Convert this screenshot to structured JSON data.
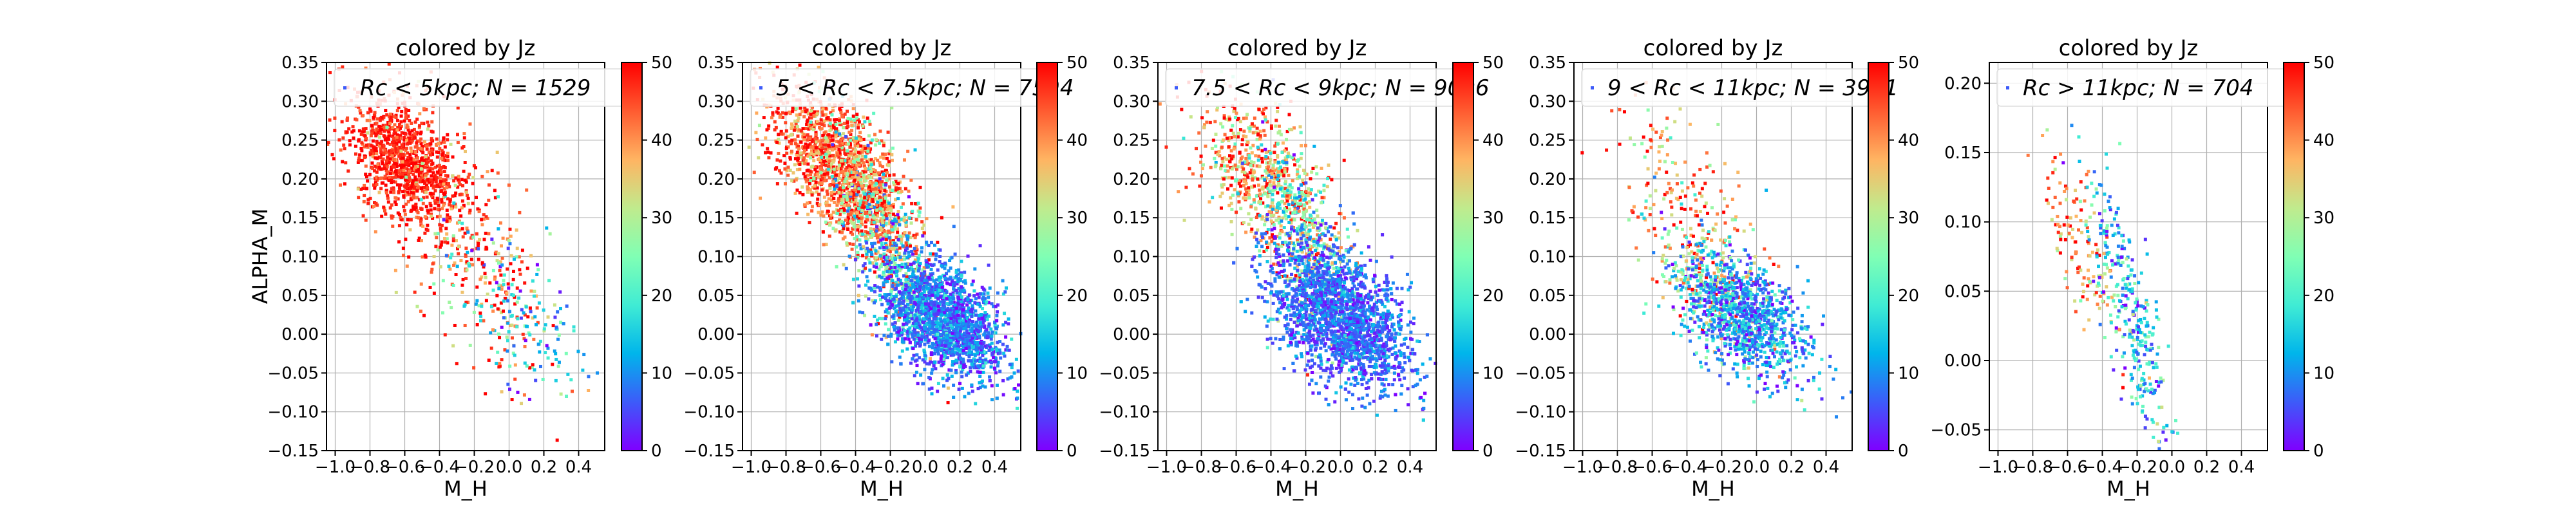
{
  "figure": {
    "ylabel": "ALPHA_M",
    "colorbar_ticks": [
      "0",
      "10",
      "20",
      "30",
      "40",
      "50"
    ],
    "colorscale": [
      "#7f00ff",
      "#3d5bf9",
      "#00b5eb",
      "#40ecd4",
      "#80ffb4",
      "#c0eb8d",
      "#ffb462",
      "#ff5b30",
      "#ff0000"
    ]
  },
  "chart_data": [
    {
      "type": "scatter",
      "title": "colored by Jz",
      "xlabel": "M_H",
      "ylabel": "ALPHA_M",
      "legend": "Rc < 5kpc;  N = 1529",
      "legend_placement": "top-right",
      "xlim": [
        -1.05,
        0.55
      ],
      "ylim": [
        -0.15,
        0.35
      ],
      "xticks": [
        -1.0,
        -0.8,
        -0.6,
        -0.4,
        -0.2,
        0.0,
        0.2,
        0.4
      ],
      "xtick_labels": [
        "−1.0",
        "−0.8",
        "−0.6",
        "−0.4",
        "−0.2",
        "0.0",
        "0.2",
        "0.4"
      ],
      "yticks": [
        -0.15,
        -0.1,
        -0.05,
        0.0,
        0.05,
        0.1,
        0.15,
        0.2,
        0.25,
        0.3,
        0.35
      ],
      "ytick_labels": [
        "−0.15",
        "−0.10",
        "−0.05",
        "0.00",
        "0.05",
        "0.10",
        "0.15",
        "0.20",
        "0.25",
        "0.30",
        "0.35"
      ],
      "grid": true,
      "color_variable": "Jz",
      "color_range": [
        0,
        50
      ],
      "n": 1529,
      "clusters": [
        {
          "n": 900,
          "cx": -0.62,
          "cy": 0.225,
          "sx": 0.16,
          "sy": 0.035,
          "slope": -0.12,
          "cmean": 48,
          "csd": 3
        },
        {
          "n": 380,
          "cx": -0.4,
          "cy": 0.17,
          "sx": 0.25,
          "sy": 0.07,
          "slope": -0.25,
          "cmean": 45,
          "csd": 8
        },
        {
          "n": 180,
          "cx": -0.05,
          "cy": 0.05,
          "sx": 0.18,
          "sy": 0.05,
          "slope": -0.2,
          "cmean": 30,
          "csd": 18
        },
        {
          "n": 69,
          "cx": 0.15,
          "cy": 0.0,
          "sx": 0.18,
          "sy": 0.04,
          "slope": -0.1,
          "cmean": 12,
          "csd": 6
        }
      ]
    },
    {
      "type": "scatter",
      "title": "colored by Jz",
      "xlabel": "M_H",
      "legend": "5 < Rc < 7.5kpc;  N = 7594",
      "legend_placement": "top-right",
      "xlim": [
        -1.05,
        0.55
      ],
      "ylim": [
        -0.15,
        0.35
      ],
      "xticks": [
        -1.0,
        -0.8,
        -0.6,
        -0.4,
        -0.2,
        0.0,
        0.2,
        0.4
      ],
      "xtick_labels": [
        "−1.0",
        "−0.8",
        "−0.6",
        "−0.4",
        "−0.2",
        "0.0",
        "0.2",
        "0.4"
      ],
      "yticks": [
        -0.15,
        -0.1,
        -0.05,
        0.0,
        0.05,
        0.1,
        0.15,
        0.2,
        0.25,
        0.3,
        0.35
      ],
      "ytick_labels": [
        "−0.15",
        "−0.10",
        "−0.05",
        "0.00",
        "0.05",
        "0.10",
        "0.15",
        "0.20",
        "0.25",
        "0.30",
        "0.35"
      ],
      "grid": true,
      "color_variable": "Jz",
      "color_range": [
        0,
        50
      ],
      "n": 7594,
      "clusters": [
        {
          "n": 1300,
          "cx": -0.5,
          "cy": 0.215,
          "sx": 0.2,
          "sy": 0.04,
          "slope": -0.15,
          "cmean": 44,
          "csd": 7
        },
        {
          "n": 700,
          "cx": -0.25,
          "cy": 0.13,
          "sx": 0.16,
          "sy": 0.05,
          "slope": -0.3,
          "cmean": 28,
          "csd": 14
        },
        {
          "n": 2000,
          "cx": 0.1,
          "cy": 0.02,
          "sx": 0.18,
          "sy": 0.035,
          "slope": -0.1,
          "cmean": 8,
          "csd": 5
        }
      ]
    },
    {
      "type": "scatter",
      "title": "colored by Jz",
      "xlabel": "M_H",
      "legend": "7.5 < Rc < 9kpc;  N = 9006",
      "legend_placement": "top-right",
      "xlim": [
        -1.05,
        0.55
      ],
      "ylim": [
        -0.15,
        0.35
      ],
      "xticks": [
        -1.0,
        -0.8,
        -0.6,
        -0.4,
        -0.2,
        0.0,
        0.2,
        0.4
      ],
      "xtick_labels": [
        "−1.0",
        "−0.8",
        "−0.6",
        "−0.4",
        "−0.2",
        "0.0",
        "0.2",
        "0.4"
      ],
      "yticks": [
        -0.15,
        -0.1,
        -0.05,
        0.0,
        0.05,
        0.1,
        0.15,
        0.2,
        0.25,
        0.3,
        0.35
      ],
      "ytick_labels": [
        "−0.15",
        "−0.10",
        "−0.05",
        "0.00",
        "0.05",
        "0.10",
        "0.15",
        "0.20",
        "0.25",
        "0.30",
        "0.35"
      ],
      "grid": true,
      "color_variable": "Jz",
      "color_range": [
        0,
        50
      ],
      "n": 9006,
      "clusters": [
        {
          "n": 600,
          "cx": -0.45,
          "cy": 0.2,
          "sx": 0.2,
          "sy": 0.045,
          "slope": -0.15,
          "cmean": 40,
          "csd": 10
        },
        {
          "n": 500,
          "cx": -0.2,
          "cy": 0.12,
          "sx": 0.15,
          "sy": 0.05,
          "slope": -0.3,
          "cmean": 22,
          "csd": 12
        },
        {
          "n": 2200,
          "cx": 0.0,
          "cy": 0.02,
          "sx": 0.2,
          "sy": 0.04,
          "slope": -0.1,
          "cmean": 7,
          "csd": 4
        }
      ]
    },
    {
      "type": "scatter",
      "title": "colored by Jz",
      "xlabel": "M_H",
      "legend": "9 < Rc < 11kpc;  N = 3991",
      "legend_placement": "top-right",
      "xlim": [
        -1.05,
        0.55
      ],
      "ylim": [
        -0.15,
        0.35
      ],
      "xticks": [
        -1.0,
        -0.8,
        -0.6,
        -0.4,
        -0.2,
        0.0,
        0.2,
        0.4
      ],
      "xtick_labels": [
        "−1.0",
        "−0.8",
        "−0.6",
        "−0.4",
        "−0.2",
        "0.0",
        "0.2",
        "0.4"
      ],
      "yticks": [
        -0.15,
        -0.1,
        -0.05,
        0.0,
        0.05,
        0.1,
        0.15,
        0.2,
        0.25,
        0.3,
        0.35
      ],
      "ytick_labels": [
        "−0.15",
        "−0.10",
        "−0.05",
        "0.00",
        "0.05",
        "0.10",
        "0.15",
        "0.20",
        "0.25",
        "0.30",
        "0.35"
      ],
      "grid": true,
      "color_variable": "Jz",
      "color_range": [
        0,
        50
      ],
      "n": 3991,
      "clusters": [
        {
          "n": 160,
          "cx": -0.4,
          "cy": 0.17,
          "sx": 0.22,
          "sy": 0.05,
          "slope": -0.2,
          "cmean": 40,
          "csd": 10
        },
        {
          "n": 400,
          "cx": -0.25,
          "cy": 0.06,
          "sx": 0.16,
          "sy": 0.04,
          "slope": -0.15,
          "cmean": 25,
          "csd": 14
        },
        {
          "n": 900,
          "cx": -0.05,
          "cy": 0.02,
          "sx": 0.18,
          "sy": 0.035,
          "slope": -0.1,
          "cmean": 10,
          "csd": 6
        }
      ]
    },
    {
      "type": "scatter",
      "title": "colored by Jz",
      "xlabel": "M_H",
      "legend": "Rc > 11kpc;  N = 704",
      "legend_placement": "top-right",
      "xlim": [
        -1.05,
        0.55
      ],
      "ylim": [
        -0.065,
        0.215
      ],
      "xticks": [
        -1.0,
        -0.8,
        -0.6,
        -0.4,
        -0.2,
        0.0,
        0.2,
        0.4
      ],
      "xtick_labels": [
        "−1.0",
        "−0.8",
        "−0.6",
        "−0.4",
        "−0.2",
        "0.0",
        "0.2",
        "0.4"
      ],
      "yticks": [
        -0.05,
        0.0,
        0.05,
        0.1,
        0.15,
        0.2
      ],
      "ytick_labels": [
        "−0.05",
        "0.00",
        "0.05",
        "0.10",
        "0.15",
        "0.20"
      ],
      "grid": true,
      "color_variable": "Jz",
      "color_range": [
        0,
        50
      ],
      "n": 704,
      "clusters": [
        {
          "n": 120,
          "cx": -0.52,
          "cy": 0.08,
          "sx": 0.1,
          "sy": 0.025,
          "slope": -0.2,
          "cmean": 42,
          "csd": 9
        },
        {
          "n": 330,
          "cx": -0.25,
          "cy": 0.04,
          "sx": 0.12,
          "sy": 0.03,
          "slope": -0.35,
          "cmean": 14,
          "csd": 9
        }
      ]
    }
  ]
}
